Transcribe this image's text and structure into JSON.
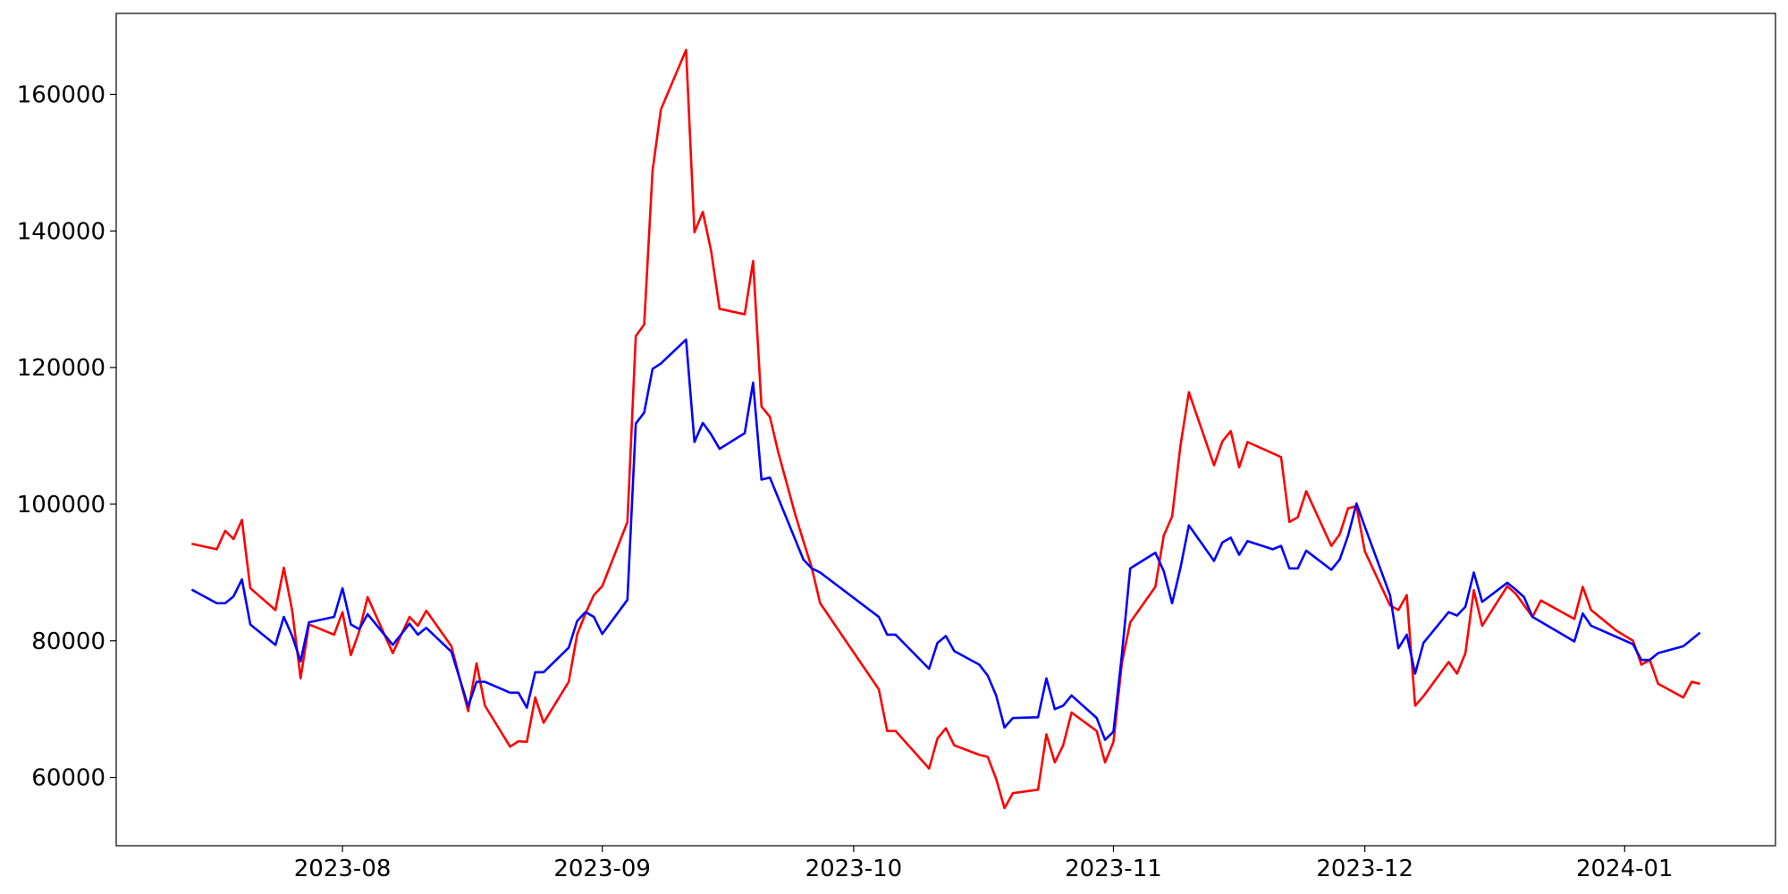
{
  "chart_data": {
    "type": "line",
    "series": [
      {
        "color": "#ff0000",
        "x": [
          -18,
          -15,
          -14,
          -13,
          -12,
          -11,
          -8,
          -7,
          -6,
          -5,
          -4,
          -1,
          0,
          1,
          2,
          3,
          6,
          8,
          9,
          10,
          13,
          15,
          16,
          17,
          20,
          21,
          22,
          23,
          24,
          27,
          28,
          29,
          30,
          31,
          34,
          35,
          36,
          37,
          38,
          41,
          42,
          43,
          44,
          45,
          48,
          49,
          50,
          51,
          52,
          54,
          55,
          56,
          57,
          64,
          65,
          66,
          70,
          71,
          72,
          73,
          76,
          77,
          78,
          79,
          80,
          83,
          84,
          85,
          86,
          87,
          90,
          91,
          92,
          93,
          94,
          97,
          98,
          99,
          100,
          101,
          104,
          105,
          106,
          107,
          108,
          112,
          113,
          114,
          115,
          118,
          119,
          120,
          121,
          122,
          125,
          126,
          127,
          128,
          129,
          132,
          133,
          134,
          135,
          136,
          139,
          140,
          141,
          142,
          143,
          147,
          148,
          149,
          152,
          154,
          155,
          156,
          157,
          160,
          161,
          162
        ],
        "values": [
          94200,
          93400,
          96100,
          94900,
          97700,
          87700,
          84500,
          90700,
          84400,
          74500,
          82400,
          80900,
          84200,
          77900,
          81400,
          86400,
          78200,
          83500,
          82200,
          84400,
          79200,
          69700,
          76700,
          70500,
          64500,
          65300,
          65200,
          71700,
          68000,
          74000,
          80900,
          84000,
          86700,
          88000,
          97400,
          124600,
          126300,
          148800,
          157800,
          166500,
          139800,
          142800,
          137000,
          128600,
          127800,
          135600,
          114300,
          112800,
          107600,
          98600,
          94600,
          90700,
          85500,
          72900,
          66800,
          66800,
          61300,
          65700,
          67200,
          64700,
          63300,
          63000,
          59800,
          55500,
          57700,
          58200,
          66300,
          62200,
          64700,
          69500,
          66800,
          62200,
          65200,
          76700,
          82700,
          87900,
          95400,
          98200,
          108600,
          116400,
          105700,
          109200,
          110700,
          105400,
          109100,
          106900,
          97400,
          98100,
          101900,
          93900,
          95600,
          99400,
          99700,
          93100,
          85200,
          84500,
          86700,
          70500,
          71900,
          76900,
          75200,
          78200,
          87400,
          82200,
          88000,
          86900,
          85200,
          83500,
          85900,
          83200,
          87900,
          84500,
          81500,
          80000,
          76500,
          77200,
          73700,
          71700,
          74000,
          73700
        ]
      },
      {
        "color": "#0000ff",
        "x": [
          -18,
          -15,
          -14,
          -13,
          -12,
          -11,
          -8,
          -7,
          -6,
          -5,
          -4,
          -1,
          0,
          1,
          2,
          3,
          6,
          8,
          9,
          10,
          13,
          15,
          16,
          17,
          20,
          21,
          22,
          23,
          24,
          27,
          28,
          29,
          30,
          31,
          34,
          35,
          36,
          37,
          38,
          41,
          42,
          43,
          44,
          45,
          48,
          49,
          50,
          51,
          55,
          56,
          57,
          64,
          65,
          66,
          70,
          71,
          72,
          73,
          76,
          77,
          78,
          79,
          80,
          83,
          84,
          85,
          86,
          87,
          90,
          91,
          92,
          93,
          94,
          97,
          98,
          99,
          100,
          101,
          104,
          105,
          106,
          107,
          108,
          111,
          112,
          113,
          114,
          115,
          118,
          119,
          120,
          121,
          122,
          125,
          126,
          127,
          128,
          129,
          132,
          133,
          134,
          135,
          136,
          139,
          140,
          141,
          142,
          147,
          148,
          149,
          154,
          155,
          156,
          157,
          160,
          162
        ],
        "values": [
          87500,
          85500,
          85500,
          86500,
          89000,
          82400,
          79400,
          83500,
          80700,
          77000,
          82700,
          83500,
          87700,
          82400,
          81700,
          83900,
          79400,
          82500,
          80900,
          81900,
          78400,
          70400,
          74000,
          74000,
          72400,
          72400,
          70200,
          75400,
          75400,
          79000,
          82900,
          84200,
          83500,
          81000,
          86000,
          111800,
          113400,
          119800,
          120600,
          124100,
          109100,
          111900,
          110200,
          108100,
          110400,
          117800,
          103600,
          103900,
          91900,
          90600,
          90000,
          83500,
          80900,
          80900,
          75900,
          79700,
          80700,
          78500,
          76500,
          74900,
          72000,
          67300,
          68700,
          68800,
          74500,
          70000,
          70500,
          72000,
          68700,
          65500,
          66700,
          77900,
          90600,
          92900,
          90200,
          85500,
          90700,
          96900,
          91700,
          94400,
          95100,
          92600,
          94600,
          93400,
          93900,
          90600,
          90600,
          93200,
          90400,
          91900,
          95400,
          100100,
          96700,
          86700,
          78900,
          80900,
          75200,
          79700,
          84200,
          83700,
          85000,
          90000,
          85700,
          88500,
          87500,
          86400,
          83500,
          79900,
          84000,
          82200,
          79500,
          77200,
          77200,
          78200,
          79200,
          81200
        ]
      }
    ],
    "xlim": [
      -27,
      171
    ],
    "xticks": [
      {
        "value": 0,
        "label": "2023-08"
      },
      {
        "value": 31,
        "label": "2023-09"
      },
      {
        "value": 61,
        "label": "2023-10"
      },
      {
        "value": 92,
        "label": "2023-11"
      },
      {
        "value": 122,
        "label": "2023-12"
      },
      {
        "value": 153,
        "label": "2024-01"
      }
    ],
    "ylim": [
      50000,
      171850
    ],
    "yticks": [
      60000,
      80000,
      100000,
      120000,
      140000,
      160000
    ],
    "grid": false
  }
}
